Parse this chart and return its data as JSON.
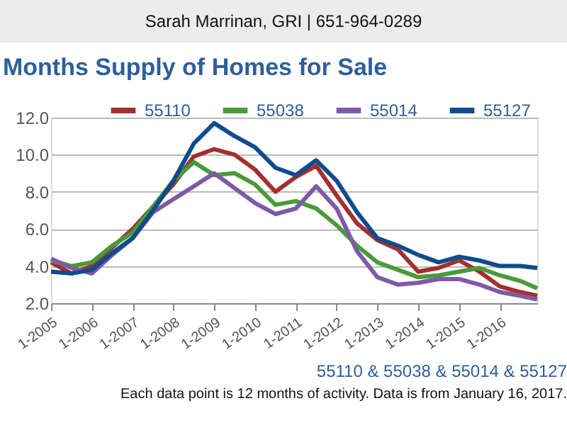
{
  "chart_data": {
    "type": "line",
    "title": "Months Supply of Homes for Sale",
    "x": [
      "2005-01",
      "2005-07",
      "2006-01",
      "2006-07",
      "2007-01",
      "2007-07",
      "2008-01",
      "2008-07",
      "2009-01",
      "2009-07",
      "2010-01",
      "2010-07",
      "2011-01",
      "2011-07",
      "2012-01",
      "2012-07",
      "2013-01",
      "2013-07",
      "2014-01",
      "2014-07",
      "2015-01",
      "2015-07",
      "2016-01",
      "2016-07",
      "2016-12"
    ],
    "series": [
      {
        "name": "55110",
        "color": "#a3302f",
        "values": [
          4.2,
          3.6,
          4.0,
          5.0,
          6.0,
          7.2,
          8.4,
          9.9,
          10.3,
          10.0,
          9.2,
          8.0,
          8.8,
          9.4,
          7.8,
          6.3,
          5.4,
          4.9,
          3.7,
          3.9,
          4.3,
          3.7,
          2.9,
          2.6,
          2.4
        ]
      },
      {
        "name": "55038",
        "color": "#4a9a3a",
        "values": [
          4.3,
          4.0,
          4.2,
          5.1,
          5.8,
          7.2,
          8.6,
          9.6,
          8.9,
          9.0,
          8.4,
          7.3,
          7.5,
          7.1,
          6.2,
          5.1,
          4.2,
          3.8,
          3.4,
          3.5,
          3.7,
          3.9,
          3.5,
          3.2,
          2.8
        ]
      },
      {
        "name": "55014",
        "color": "#7e5aa6",
        "values": [
          4.4,
          3.9,
          3.6,
          4.6,
          5.5,
          6.9,
          7.6,
          8.3,
          9.0,
          8.2,
          7.4,
          6.8,
          7.1,
          8.3,
          7.1,
          4.8,
          3.4,
          3.0,
          3.1,
          3.3,
          3.3,
          3.0,
          2.6,
          2.4,
          2.2
        ]
      },
      {
        "name": "55127",
        "color": "#0e4c8c",
        "values": [
          3.7,
          3.6,
          3.8,
          4.7,
          5.5,
          7.0,
          8.6,
          10.6,
          11.7,
          11.0,
          10.4,
          9.3,
          8.9,
          9.7,
          8.6,
          6.9,
          5.5,
          5.1,
          4.6,
          4.2,
          4.5,
          4.3,
          4.0,
          4.0,
          3.9
        ]
      }
    ],
    "xlim": [
      "2005-01",
      "2016-12"
    ],
    "xticks": [
      {
        "value": "2005-01",
        "label": "1-2005"
      },
      {
        "value": "2006-01",
        "label": "1-2006"
      },
      {
        "value": "2007-01",
        "label": "1-2007"
      },
      {
        "value": "2008-01",
        "label": "1-2008"
      },
      {
        "value": "2009-01",
        "label": "1-2009"
      },
      {
        "value": "2010-01",
        "label": "1-2010"
      },
      {
        "value": "2011-01",
        "label": "1-2011"
      },
      {
        "value": "2012-01",
        "label": "1-2012"
      },
      {
        "value": "2013-01",
        "label": "1-2013"
      },
      {
        "value": "2014-01",
        "label": "1-2014"
      },
      {
        "value": "2015-01",
        "label": "1-2015"
      },
      {
        "value": "2016-01",
        "label": "1-2016"
      }
    ],
    "ylim": [
      2,
      12
    ],
    "yticks": [
      {
        "value": 2,
        "label": "2.0"
      },
      {
        "value": 4,
        "label": "4.0"
      },
      {
        "value": 6,
        "label": "6.0"
      },
      {
        "value": 8,
        "label": "8.0"
      },
      {
        "value": 10,
        "label": "10.0"
      },
      {
        "value": 12,
        "label": "12.0"
      }
    ],
    "grid": "y",
    "legend": "top",
    "line_style": "solid",
    "marker": "none",
    "annotations": [
      "Sarah Marrinan, GRI | 651-964-0289",
      "55110 & 55038 & 55014 & 55127",
      "Each data point is 12 months of activity. Data is from January 16, 2017."
    ]
  }
}
